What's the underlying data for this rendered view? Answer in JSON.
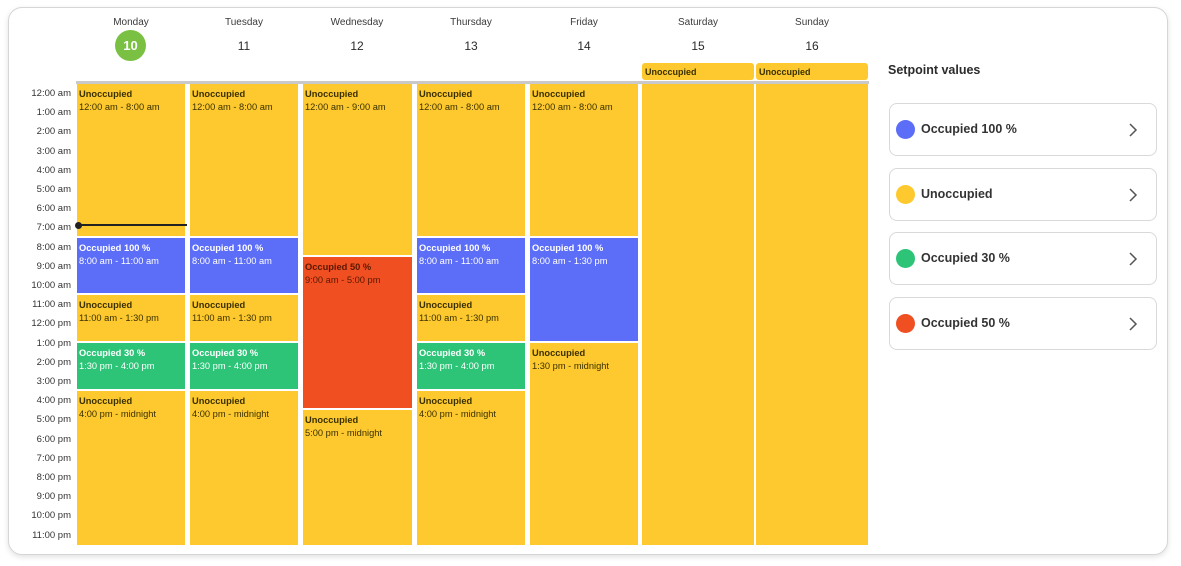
{
  "days": [
    {
      "name": "Monday",
      "num": "10",
      "today": true
    },
    {
      "name": "Tuesday",
      "num": "11",
      "today": false
    },
    {
      "name": "Wednesday",
      "num": "12",
      "today": false
    },
    {
      "name": "Thursday",
      "num": "13",
      "today": false
    },
    {
      "name": "Friday",
      "num": "14",
      "today": false
    },
    {
      "name": "Saturday",
      "num": "15",
      "today": false
    },
    {
      "name": "Sunday",
      "num": "16",
      "today": false
    }
  ],
  "all_day": {
    "saturday": "Unoccupied",
    "sunday": "Unoccupied"
  },
  "hours": [
    "12:00 am",
    "1:00 am",
    "2:00 am",
    "3:00 am",
    "4:00 am",
    "5:00 am",
    "6:00 am",
    "7:00 am",
    "8:00 am",
    "9:00 am",
    "10:00 am",
    "11:00 am",
    "12:00 pm",
    "1:00 pm",
    "2:00 pm",
    "3:00 pm",
    "4:00 pm",
    "5:00 pm",
    "6:00 pm",
    "7:00 pm",
    "8:00 pm",
    "9:00 pm",
    "10:00 pm",
    "11:00 pm"
  ],
  "events": {
    "monday": [
      {
        "title": "Unoccupied",
        "time": "12:00 am - 8:00 am",
        "start": 0,
        "end": 8,
        "color": "yellow"
      },
      {
        "title": "Occupied 100 %",
        "time": "8:00 am - 11:00 am",
        "start": 8,
        "end": 11,
        "color": "blue"
      },
      {
        "title": "Unoccupied",
        "time": "11:00 am - 1:30 pm",
        "start": 11,
        "end": 13.5,
        "color": "yellow"
      },
      {
        "title": "Occupied 30 %",
        "time": "1:30 pm - 4:00 pm",
        "start": 13.5,
        "end": 16,
        "color": "green"
      },
      {
        "title": "Unoccupied",
        "time": "4:00 pm - midnight",
        "start": 16,
        "end": 24,
        "color": "yellow"
      }
    ],
    "tuesday": [
      {
        "title": "Unoccupied",
        "time": "12:00 am - 8:00 am",
        "start": 0,
        "end": 8,
        "color": "yellow"
      },
      {
        "title": "Occupied 100 %",
        "time": "8:00 am - 11:00 am",
        "start": 8,
        "end": 11,
        "color": "blue"
      },
      {
        "title": "Unoccupied",
        "time": "11:00 am - 1:30 pm",
        "start": 11,
        "end": 13.5,
        "color": "yellow"
      },
      {
        "title": "Occupied 30 %",
        "time": "1:30 pm - 4:00 pm",
        "start": 13.5,
        "end": 16,
        "color": "green"
      },
      {
        "title": "Unoccupied",
        "time": "4:00 pm - midnight",
        "start": 16,
        "end": 24,
        "color": "yellow"
      }
    ],
    "wednesday": [
      {
        "title": "Unoccupied",
        "time": "12:00 am - 9:00 am",
        "start": 0,
        "end": 9,
        "color": "yellow"
      },
      {
        "title": "Occupied 50 %",
        "time": "9:00 am - 5:00 pm",
        "start": 9,
        "end": 17,
        "color": "red"
      },
      {
        "title": "Unoccupied",
        "time": "5:00 pm - midnight",
        "start": 17,
        "end": 24,
        "color": "yellow"
      }
    ],
    "thursday": [
      {
        "title": "Unoccupied",
        "time": "12:00 am - 8:00 am",
        "start": 0,
        "end": 8,
        "color": "yellow"
      },
      {
        "title": "Occupied 100 %",
        "time": "8:00 am - 11:00 am",
        "start": 8,
        "end": 11,
        "color": "blue"
      },
      {
        "title": "Unoccupied",
        "time": "11:00 am - 1:30 pm",
        "start": 11,
        "end": 13.5,
        "color": "yellow"
      },
      {
        "title": "Occupied 30 %",
        "time": "1:30 pm - 4:00 pm",
        "start": 13.5,
        "end": 16,
        "color": "green"
      },
      {
        "title": "Unoccupied",
        "time": "4:00 pm - midnight",
        "start": 16,
        "end": 24,
        "color": "yellow"
      }
    ],
    "friday": [
      {
        "title": "Unoccupied",
        "time": "12:00 am - 8:00 am",
        "start": 0,
        "end": 8,
        "color": "yellow"
      },
      {
        "title": "Occupied 100 %",
        "time": "8:00 am - 1:30 pm",
        "start": 8,
        "end": 13.5,
        "color": "blue"
      },
      {
        "title": "Unoccupied",
        "time": "1:30 pm - midnight",
        "start": 13.5,
        "end": 24,
        "color": "yellow"
      }
    ]
  },
  "now_time": 7.3,
  "legend": {
    "title": "Setpoint values",
    "items": [
      {
        "label": "Occupied 100 %",
        "color": "#5c6df7"
      },
      {
        "label": "Unoccupied",
        "color": "#fdc92e"
      },
      {
        "label": "Occupied 30 %",
        "color": "#2dc478"
      },
      {
        "label": "Occupied 50 %",
        "color": "#f04f22"
      }
    ]
  }
}
